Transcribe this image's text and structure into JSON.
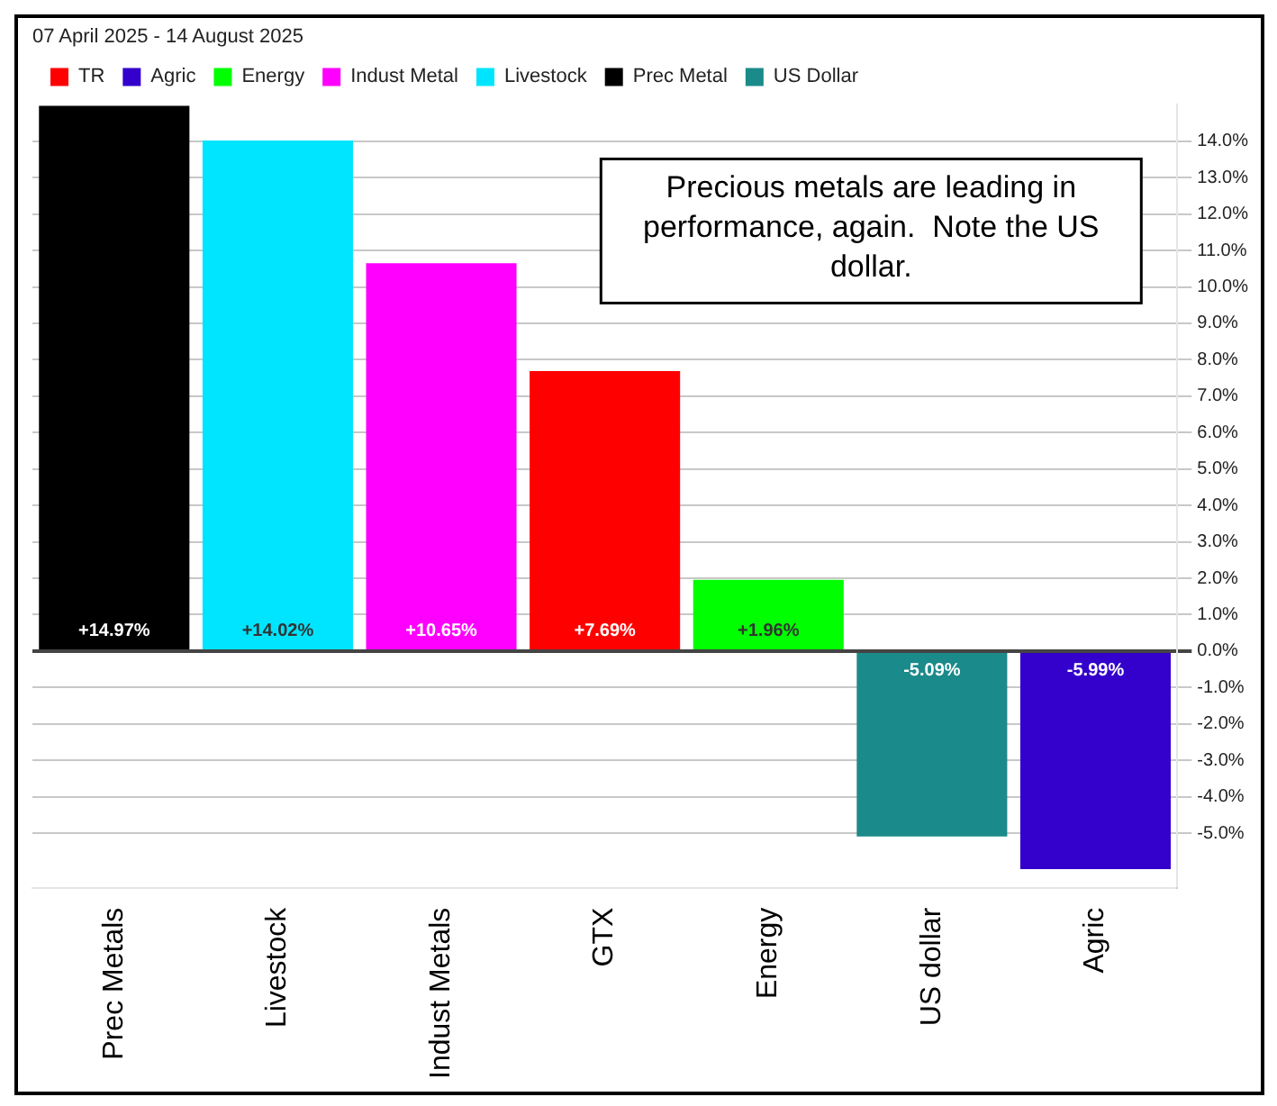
{
  "chart_data": {
    "type": "bar",
    "subtitle": "07 April 2025 - 14 August 2025",
    "categories": [
      "Prec Metals",
      "Livestock",
      "Indust Metals",
      "GTX",
      "Energy",
      "US dollar",
      "Agric"
    ],
    "series": [
      {
        "name": "TR",
        "color": "#ff0000",
        "values": [
          null,
          null,
          null,
          7.69,
          null,
          null,
          null
        ],
        "value_labels": [
          null,
          null,
          null,
          "+7.69%",
          null,
          null,
          null
        ]
      },
      {
        "name": "Agric",
        "color": "#3300cc",
        "values": [
          null,
          null,
          null,
          null,
          null,
          null,
          -5.99
        ],
        "value_labels": [
          null,
          null,
          null,
          null,
          null,
          null,
          "-5.99%"
        ]
      },
      {
        "name": "Energy",
        "color": "#00ff00",
        "values": [
          null,
          null,
          null,
          null,
          1.96,
          null,
          null
        ],
        "value_labels": [
          null,
          null,
          null,
          null,
          "+1.96%",
          null,
          null
        ]
      },
      {
        "name": "Indust Metal",
        "color": "#ff00ff",
        "values": [
          null,
          null,
          10.65,
          null,
          null,
          null,
          null
        ],
        "value_labels": [
          null,
          null,
          "+10.65%",
          null,
          null,
          null,
          null
        ]
      },
      {
        "name": "Livestock",
        "color": "#00e5ff",
        "values": [
          null,
          14.02,
          null,
          null,
          null,
          null,
          null
        ],
        "value_labels": [
          null,
          "+14.02%",
          null,
          null,
          null,
          null,
          null
        ]
      },
      {
        "name": "Prec Metal",
        "color": "#000000",
        "values": [
          14.97,
          null,
          null,
          null,
          null,
          null,
          null
        ],
        "value_labels": [
          "+14.97%",
          null,
          null,
          null,
          null,
          null,
          null
        ]
      },
      {
        "name": "US Dollar",
        "color": "#1a8a8a",
        "values": [
          null,
          null,
          null,
          null,
          null,
          -5.09,
          null
        ],
        "value_labels": [
          null,
          null,
          null,
          null,
          null,
          "-5.09%",
          null
        ]
      }
    ],
    "ylim": [
      -6.5,
      15
    ],
    "yticks": [
      {
        "value": -5,
        "label": "-5.0%"
      },
      {
        "value": -4,
        "label": "-4.0%"
      },
      {
        "value": -3,
        "label": "-3.0%"
      },
      {
        "value": -2,
        "label": "-2.0%"
      },
      {
        "value": -1,
        "label": "-1.0%"
      },
      {
        "value": 0,
        "label": "0.0%"
      },
      {
        "value": 1,
        "label": "1.0%"
      },
      {
        "value": 2,
        "label": "2.0%"
      },
      {
        "value": 3,
        "label": "3.0%"
      },
      {
        "value": 4,
        "label": "4.0%"
      },
      {
        "value": 5,
        "label": "5.0%"
      },
      {
        "value": 6,
        "label": "6.0%"
      },
      {
        "value": 7,
        "label": "7.0%"
      },
      {
        "value": 8,
        "label": "8.0%"
      },
      {
        "value": 9,
        "label": "9.0%"
      },
      {
        "value": 10,
        "label": "10.0%"
      },
      {
        "value": 11,
        "label": "11.0%"
      },
      {
        "value": 12,
        "label": "12.0%"
      },
      {
        "value": 13,
        "label": "13.0%"
      },
      {
        "value": 14,
        "label": "14.0%"
      }
    ],
    "grid": "y",
    "legend": "top left",
    "annotations": [
      "Precious metals are leading in performance, again.  Note the US dollar."
    ]
  }
}
